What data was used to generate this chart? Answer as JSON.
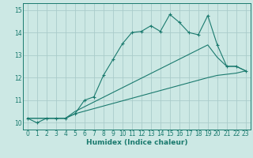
{
  "xlabel": "Humidex (Indice chaleur)",
  "bg_color": "#cce8e4",
  "line_color": "#1a7a6e",
  "grid_color": "#aaccca",
  "xlim": [
    -0.5,
    23.5
  ],
  "ylim": [
    9.7,
    15.3
  ],
  "yticks": [
    10,
    11,
    12,
    13,
    14,
    15
  ],
  "xticks": [
    0,
    1,
    2,
    3,
    4,
    5,
    6,
    7,
    8,
    9,
    10,
    11,
    12,
    13,
    14,
    15,
    16,
    17,
    18,
    19,
    20,
    21,
    22,
    23
  ],
  "series1_x": [
    0,
    1,
    2,
    3,
    4,
    5,
    6,
    7,
    8,
    9,
    10,
    11,
    12,
    13,
    14,
    15,
    16,
    17,
    18,
    19,
    20,
    21,
    22,
    23
  ],
  "series1_y": [
    10.2,
    10.0,
    10.2,
    10.2,
    10.2,
    10.4,
    11.0,
    11.15,
    12.1,
    12.8,
    13.5,
    14.0,
    14.05,
    14.3,
    14.05,
    14.8,
    14.45,
    14.0,
    13.9,
    14.75,
    13.45,
    12.5,
    12.5,
    12.3
  ],
  "series2_x": [
    0,
    2,
    3,
    4,
    5,
    19,
    20,
    21,
    22,
    23
  ],
  "series2_y": [
    10.2,
    10.2,
    10.2,
    10.2,
    10.5,
    13.45,
    12.9,
    12.5,
    12.5,
    12.3
  ],
  "series3_x": [
    0,
    2,
    3,
    4,
    5,
    19,
    20,
    21,
    22,
    23
  ],
  "series3_y": [
    10.2,
    10.2,
    10.2,
    10.2,
    10.4,
    12.0,
    12.1,
    12.15,
    12.2,
    12.3
  ],
  "xlabel_fontsize": 6.5,
  "tick_fontsize": 5.5
}
